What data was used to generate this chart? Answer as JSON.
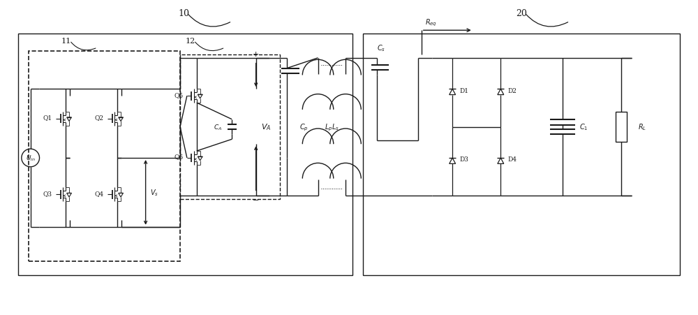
{
  "fig_width": 10.0,
  "fig_height": 4.52,
  "bg_color": "#ffffff",
  "line_color": "#1a1a1a",
  "lw_main": 1.0,
  "lw_thick": 1.5,
  "lw_thin": 0.7,
  "labels": {
    "box10": "10",
    "box20": "20",
    "box11": "11",
    "box12": "12",
    "Uin": "$U_{in}$",
    "Q1": "Q1",
    "Q2": "Q2",
    "Q3": "Q3",
    "Q4": "Q4",
    "Q5": "Q5",
    "Q6": "Q6",
    "CA": "$C_A$",
    "VA": "$V_A$",
    "Cp": "$C_p$",
    "Lp": "$L_p$",
    "Ls": "$L_s$",
    "Cs": "$C_s$",
    "D1": "D1",
    "D2": "D2",
    "D3": "D3",
    "D4": "D4",
    "C1": "$C_1$",
    "RL": "$R_L$",
    "Vs": "$V_s$",
    "Req": "$R_{eq}$"
  }
}
